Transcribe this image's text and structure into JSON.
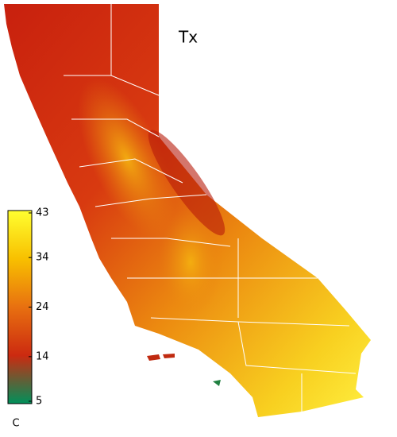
{
  "map": {
    "title": "Tx",
    "colorbar": {
      "lim": [
        5,
        43
      ],
      "ticks": [
        5,
        14,
        24,
        34,
        43
      ],
      "unit": "C",
      "colors": [
        "#00905a",
        "#cc2a10",
        "#e87010",
        "#f8c000",
        "#ffff30"
      ]
    }
  }
}
